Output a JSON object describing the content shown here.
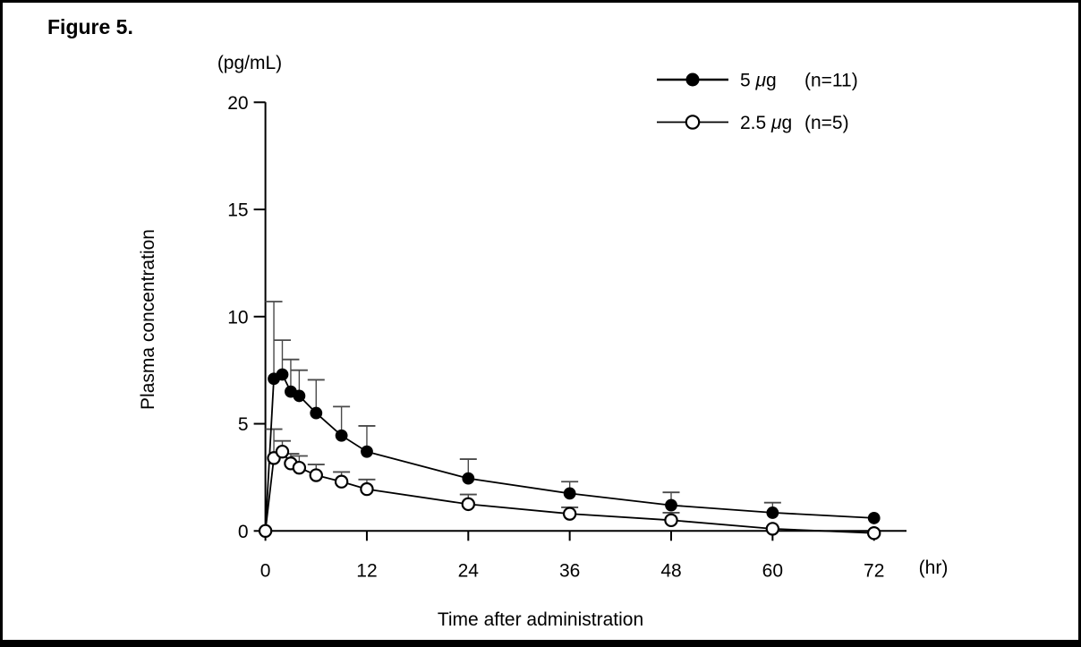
{
  "figure": {
    "title": "Figure 5."
  },
  "chart_data": {
    "type": "line",
    "title": "",
    "grid": false,
    "y_axis": {
      "unit_label": "(pg/mL)",
      "axis_label": "Plasma concentration",
      "ticks": [
        0,
        5,
        10,
        15,
        20
      ],
      "range": [
        0,
        20
      ]
    },
    "x_axis": {
      "unit_label": "(hr)",
      "axis_label": "Time after administration",
      "ticks": [
        0,
        12,
        24,
        36,
        48,
        60,
        72
      ],
      "range": [
        0,
        75
      ]
    },
    "legend": {
      "position": "top-right",
      "entries": [
        {
          "label": "5 μg",
          "n_label": "(n=11)",
          "marker": "filled-circle"
        },
        {
          "label": "2.5 μg",
          "n_label": "(n=5)",
          "marker": "open-circle"
        }
      ]
    },
    "series": [
      {
        "name": "5 μg (n=11)",
        "marker": "filled-circle",
        "color": "#000000",
        "x": [
          0,
          1,
          2,
          3,
          4,
          6,
          9,
          12,
          24,
          36,
          48,
          60,
          72
        ],
        "y": [
          0,
          7.1,
          7.3,
          6.5,
          6.3,
          5.5,
          4.45,
          3.7,
          2.45,
          1.75,
          1.2,
          0.85,
          0.6
        ],
        "sd_upper": [
          0,
          3.6,
          1.6,
          1.5,
          1.2,
          1.55,
          1.35,
          1.2,
          0.9,
          0.55,
          0.6,
          0.47,
          0
        ]
      },
      {
        "name": "2.5 μg (n=5)",
        "marker": "open-circle",
        "color": "#000000",
        "x": [
          0,
          1,
          2,
          3,
          4,
          6,
          9,
          12,
          24,
          36,
          48,
          60,
          72
        ],
        "y": [
          0,
          3.4,
          3.7,
          3.15,
          2.95,
          2.6,
          2.3,
          1.95,
          1.25,
          0.8,
          0.5,
          0.1,
          -0.1
        ],
        "sd_upper": [
          0,
          1.35,
          0.5,
          0.45,
          0.55,
          0.5,
          0.45,
          0.45,
          0.45,
          0.3,
          0.35,
          0,
          0
        ]
      }
    ]
  }
}
